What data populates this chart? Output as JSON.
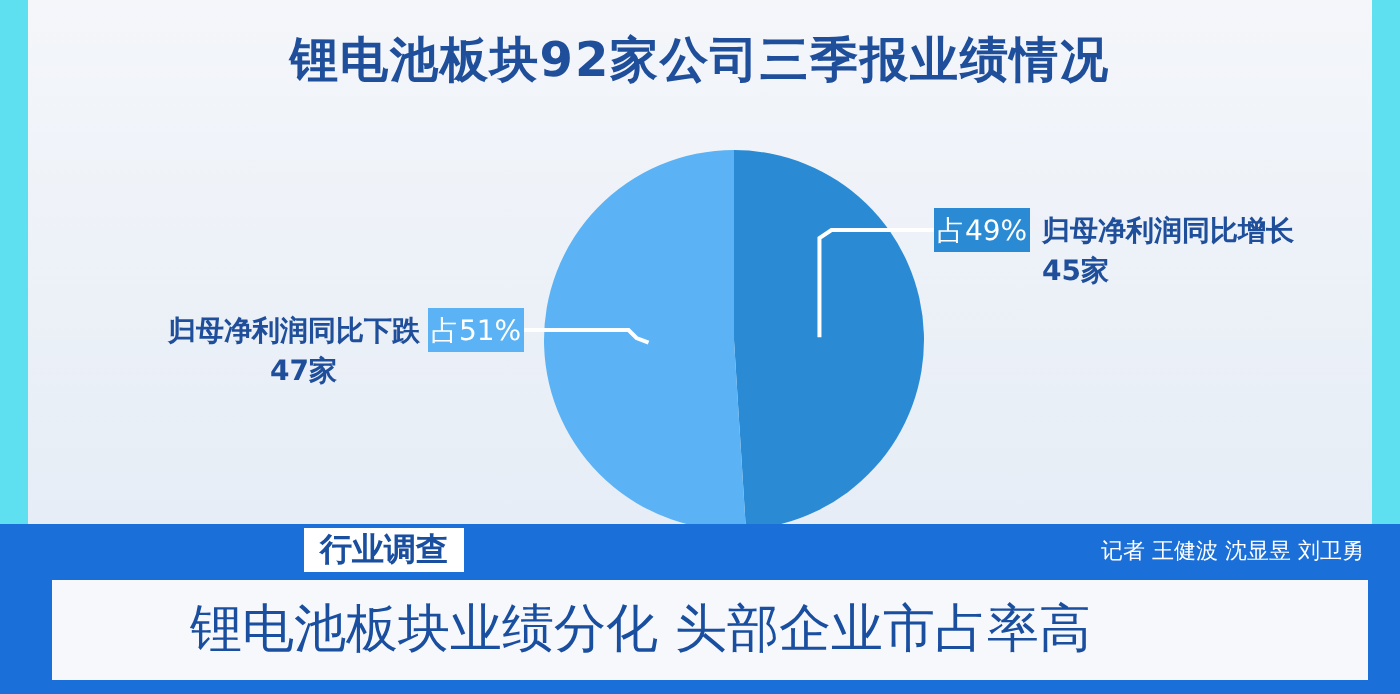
{
  "chart_data": {
    "type": "pie",
    "title": "锂电池板块92家公司三季报业绩情况",
    "categories": [
      "归母净利润同比增长\n45家",
      "归母净利润同比下跌\n47家"
    ],
    "values": [
      49,
      51
    ],
    "colors": [
      "#2a8bd4",
      "#5bb3f5"
    ],
    "value_labels": [
      "占49%",
      "占51%"
    ],
    "annotations": [
      "行业调查",
      "记者 王健波 沈显昱 刘卫勇",
      "锂电池板块业绩分化 头部企业市占率高"
    ]
  }
}
